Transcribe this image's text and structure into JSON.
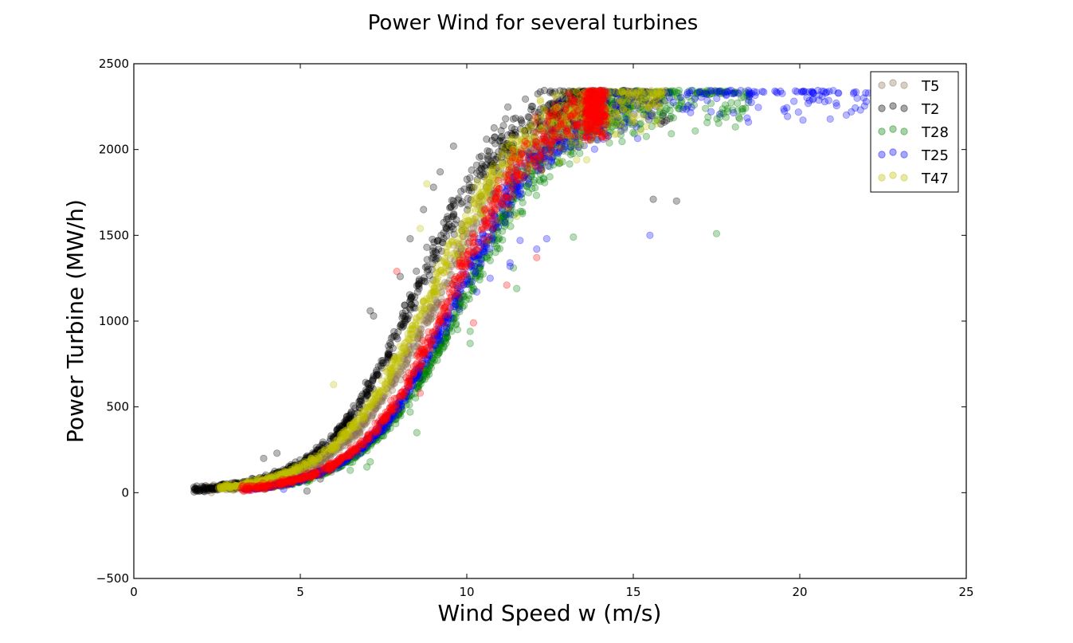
{
  "chart_data": {
    "type": "scatter",
    "title": "Power Wind for several turbines",
    "xlabel": "Wind Speed w (m/s)",
    "ylabel": "Power Turbine (MW/h)",
    "xlim": [
      0,
      25
    ],
    "ylim": [
      -500,
      2500
    ],
    "xticks": [
      "0",
      "5",
      "10",
      "15",
      "20",
      "25"
    ],
    "yticks": [
      "−500",
      "0",
      "500",
      "1000",
      "1500",
      "2000",
      "2500"
    ],
    "grid": false,
    "legend_position": "top-right",
    "rated_power": 2330,
    "series": [
      {
        "name": "T5",
        "color": "#8b7355",
        "curve": {
          "x_mid": 9.2,
          "steepness": 0.62
        },
        "x_range": [
          2.2,
          14
        ],
        "outliers": []
      },
      {
        "name": "T2",
        "color": "#000000",
        "curve": {
          "x_mid": 8.5,
          "steepness": 0.66
        },
        "x_range": [
          1.8,
          16
        ],
        "outliers": [
          [
            8.3,
            1480
          ],
          [
            8.7,
            1650
          ],
          [
            8.8,
            1430
          ],
          [
            9.0,
            1780
          ],
          [
            9.2,
            1870
          ],
          [
            9.6,
            2020
          ],
          [
            8.0,
            1260
          ],
          [
            7.1,
            1060
          ],
          [
            7.2,
            1030
          ],
          [
            16.0,
            2170
          ],
          [
            16.1,
            2180
          ],
          [
            15.6,
            1710
          ],
          [
            16.3,
            1700
          ],
          [
            5.2,
            10
          ],
          [
            5.6,
            80
          ],
          [
            4.3,
            230
          ],
          [
            3.9,
            200
          ]
        ]
      },
      {
        "name": "T28",
        "color": "#008000",
        "curve": {
          "x_mid": 10.0,
          "steepness": 0.62
        },
        "x_range": [
          3.8,
          18.5
        ],
        "outliers": [
          [
            17.5,
            1510
          ],
          [
            13.2,
            1490
          ],
          [
            12.6,
            1910
          ],
          [
            12.0,
            1960
          ],
          [
            11.5,
            1190
          ],
          [
            11.4,
            1310
          ],
          [
            10.1,
            870
          ],
          [
            10.1,
            940
          ],
          [
            9.6,
            1010
          ],
          [
            7.0,
            150
          ],
          [
            7.1,
            180
          ],
          [
            6.5,
            130
          ],
          [
            5.2,
            60
          ],
          [
            8.5,
            350
          ],
          [
            8.3,
            470
          ]
        ]
      },
      {
        "name": "T25",
        "color": "#0000ff",
        "curve": {
          "x_mid": 9.75,
          "steepness": 0.64
        },
        "x_range": [
          3.3,
          22.8
        ],
        "outliers": [
          [
            15.5,
            1500
          ],
          [
            12.4,
            1480
          ],
          [
            12.1,
            1420
          ],
          [
            11.6,
            1470
          ],
          [
            11.3,
            1340
          ],
          [
            11.3,
            1320
          ],
          [
            10.7,
            1250
          ],
          [
            10.3,
            1170
          ],
          [
            5.5,
            120
          ],
          [
            4.5,
            20
          ]
        ]
      },
      {
        "name": "T47",
        "color": "#bfbf00",
        "curve": {
          "x_mid": 8.95,
          "steepness": 0.62
        },
        "x_range": [
          2.5,
          16
        ],
        "outliers": [
          [
            12.4,
            1920
          ],
          [
            12.8,
            1930
          ],
          [
            13.3,
            1940
          ],
          [
            13.6,
            1940
          ],
          [
            11.5,
            1610
          ],
          [
            8.8,
            1800
          ],
          [
            8.6,
            1540
          ],
          [
            6.0,
            630
          ]
        ]
      },
      {
        "name": "",
        "color": "#ff0000",
        "curve": {
          "x_mid": 9.55,
          "steepness": 0.66
        },
        "x_range": [
          3.2,
          14.2
        ],
        "outliers": [
          [
            12.1,
            1370
          ],
          [
            11.2,
            1210
          ],
          [
            10.2,
            990
          ],
          [
            8.6,
            580
          ],
          [
            14.0,
            2240
          ],
          [
            7.9,
            1290
          ]
        ]
      }
    ]
  }
}
